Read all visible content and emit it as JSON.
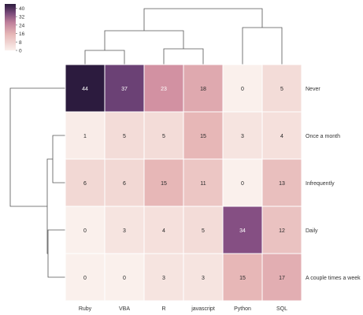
{
  "chart_data": {
    "type": "heatmap",
    "title": "",
    "xlabel": "",
    "ylabel": "",
    "columns": [
      "Ruby",
      "VBA",
      "R",
      "javascript",
      "Python",
      "SQL"
    ],
    "rows": [
      "Never",
      "Once a month",
      "Infrequently",
      "Daily",
      "A couple times a week"
    ],
    "values": [
      [
        44,
        37,
        23,
        18,
        0,
        5
      ],
      [
        1,
        5,
        5,
        15,
        3,
        4
      ],
      [
        6,
        6,
        15,
        11,
        0,
        13
      ],
      [
        0,
        3,
        4,
        5,
        34,
        12
      ],
      [
        0,
        0,
        3,
        3,
        15,
        17
      ]
    ],
    "colorbar": {
      "ticks": [
        "40",
        "32",
        "24",
        "16",
        "8",
        "0"
      ],
      "range": [
        0,
        44
      ]
    },
    "colormap": {
      "low": "#faf0ec",
      "mid": "#cf8b9f",
      "high": "#2c1b3e"
    },
    "dendrogram_color": "#555555"
  }
}
